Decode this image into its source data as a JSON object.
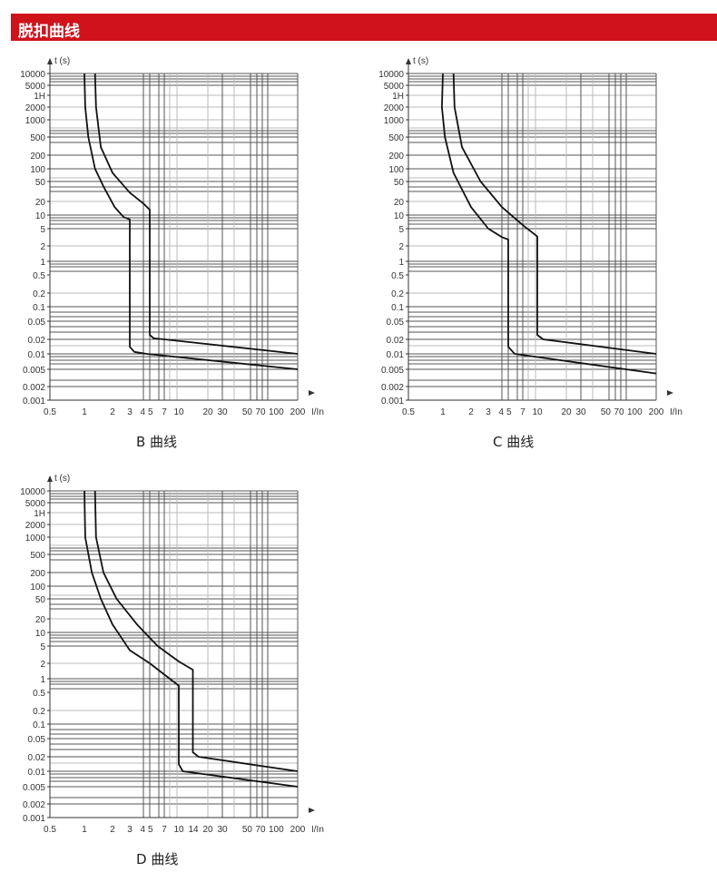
{
  "header": {
    "title": "脱扣曲线"
  },
  "colors": {
    "header_bg": "#d0121b",
    "curve": "#111111",
    "grid_dark": "#555555",
    "grid_light": "#bbbbbb"
  },
  "chart_data": [
    {
      "type": "line",
      "title": "B 曲线",
      "ylabel": "t (s)",
      "xlabel": "I/In",
      "yticks": [
        "10000",
        "5000",
        "1H",
        "2000",
        "1000",
        "500",
        "200",
        "100",
        "50",
        "20",
        "10",
        "5",
        "2",
        "1",
        "0.5",
        "0.2",
        "0.1",
        "0.05",
        "0.02",
        "0.01",
        "0.005",
        "0.002",
        "0.001"
      ],
      "xticks": [
        "0.5",
        "1",
        "2",
        "3",
        "4",
        "5",
        "7",
        "10",
        "20",
        "30",
        "50",
        "70",
        "100",
        "200"
      ],
      "xlim": [
        0.5,
        200
      ],
      "ylim": [
        0.001,
        10000
      ],
      "series": [
        {
          "name": "lower",
          "points": [
            [
              1,
              10000
            ],
            [
              1.02,
              2000
            ],
            [
              1.1,
              500
            ],
            [
              1.3,
              100
            ],
            [
              1.6,
              40
            ],
            [
              2.1,
              15
            ],
            [
              2.6,
              9
            ],
            [
              3,
              8
            ],
            [
              3,
              0.014
            ],
            [
              3.3,
              0.011
            ],
            [
              4.5,
              0.01
            ],
            [
              200,
              0.005
            ]
          ]
        },
        {
          "name": "upper",
          "points": [
            [
              1.3,
              10000
            ],
            [
              1.33,
              2000
            ],
            [
              1.5,
              300
            ],
            [
              2,
              80
            ],
            [
              3,
              30
            ],
            [
              4,
              18
            ],
            [
              5,
              13
            ],
            [
              5,
              0.025
            ],
            [
              5.5,
              0.021
            ],
            [
              7,
              0.02
            ],
            [
              200,
              0.01
            ]
          ]
        }
      ]
    },
    {
      "type": "line",
      "title": "C 曲线",
      "ylabel": "t (s)",
      "xlabel": "I/In",
      "yticks": [
        "10000",
        "5000",
        "1H",
        "2000",
        "1000",
        "500",
        "200",
        "100",
        "50",
        "20",
        "10",
        "5",
        "2",
        "1",
        "0.5",
        "0.2",
        "0.1",
        "0.05",
        "0.02",
        "0.01",
        "0.005",
        "0.002",
        "0.001"
      ],
      "xticks": [
        "0.5",
        "1",
        "2",
        "3",
        "4",
        "5",
        "7",
        "10",
        "20",
        "30",
        "50",
        "70",
        "100",
        "200"
      ],
      "xlim": [
        0.5,
        200
      ],
      "ylim": [
        0.001,
        10000
      ],
      "series": [
        {
          "name": "lower",
          "points": [
            [
              1,
              10000
            ],
            [
              0.98,
              2000
            ],
            [
              1.05,
              500
            ],
            [
              1.3,
              80
            ],
            [
              2,
              15
            ],
            [
              3,
              5
            ],
            [
              4,
              3.2
            ],
            [
              5,
              2.8
            ],
            [
              5,
              0.014
            ],
            [
              5.8,
              0.01
            ],
            [
              200,
              0.004
            ]
          ]
        },
        {
          "name": "upper",
          "points": [
            [
              1.3,
              10000
            ],
            [
              1.33,
              2000
            ],
            [
              1.6,
              300
            ],
            [
              2.5,
              50
            ],
            [
              4,
              15
            ],
            [
              7,
              6
            ],
            [
              10,
              3.3
            ],
            [
              10,
              0.025
            ],
            [
              11.5,
              0.02
            ],
            [
              200,
              0.01
            ]
          ]
        }
      ]
    },
    {
      "type": "line",
      "title": "D 曲线",
      "ylabel": "t (s)",
      "xlabel": "I/In",
      "yticks": [
        "10000",
        "5000",
        "1H",
        "2000",
        "1000",
        "500",
        "200",
        "100",
        "50",
        "20",
        "10",
        "5",
        "2",
        "1",
        "0.5",
        "0.2",
        "0.1",
        "0.05",
        "0.02",
        "0.01",
        "0.005",
        "0.002",
        "0.001"
      ],
      "xticks": [
        "0.5",
        "1",
        "2",
        "3",
        "4",
        "5",
        "7",
        "10",
        "14",
        "20",
        "30",
        "50",
        "70",
        "100",
        "200"
      ],
      "xlim": [
        0.5,
        200
      ],
      "ylim": [
        0.001,
        10000
      ],
      "series": [
        {
          "name": "lower",
          "points": [
            [
              1,
              10000
            ],
            [
              1.02,
              1000
            ],
            [
              1.2,
              200
            ],
            [
              1.5,
              50
            ],
            [
              2,
              15
            ],
            [
              3,
              4
            ],
            [
              5,
              2
            ],
            [
              8,
              1
            ],
            [
              10,
              0.7
            ],
            [
              10,
              0.014
            ],
            [
              11,
              0.01
            ],
            [
              200,
              0.005
            ]
          ]
        },
        {
          "name": "upper",
          "points": [
            [
              1.3,
              10000
            ],
            [
              1.33,
              1000
            ],
            [
              1.6,
              200
            ],
            [
              2.2,
              50
            ],
            [
              3.5,
              15
            ],
            [
              6,
              5
            ],
            [
              10,
              2.2
            ],
            [
              14,
              1.5
            ],
            [
              14,
              0.025
            ],
            [
              16,
              0.02
            ],
            [
              200,
              0.01
            ]
          ]
        }
      ]
    }
  ]
}
